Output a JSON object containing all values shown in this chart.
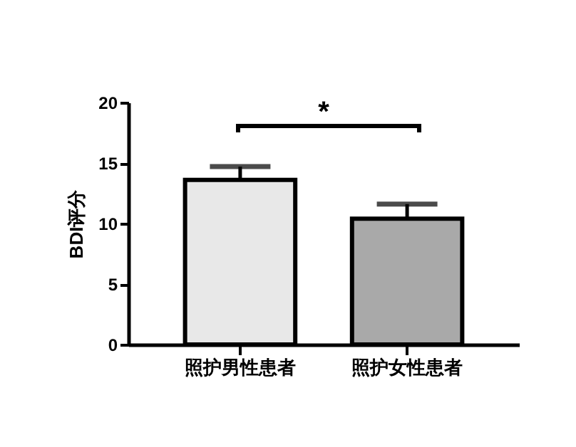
{
  "chart_data": {
    "type": "bar",
    "ylabel": "BDI评分",
    "categories": [
      "照护男性患者",
      "照护女性患者"
    ],
    "values": [
      13.6,
      10.4
    ],
    "errors": [
      1.1,
      1.2
    ],
    "colors": [
      "#e8e8e8",
      "#a9a9a9"
    ],
    "ylim": [
      0,
      20
    ],
    "yticks": [
      0,
      5,
      10,
      15,
      20
    ],
    "grid": false,
    "annotations": [
      "*"
    ]
  }
}
